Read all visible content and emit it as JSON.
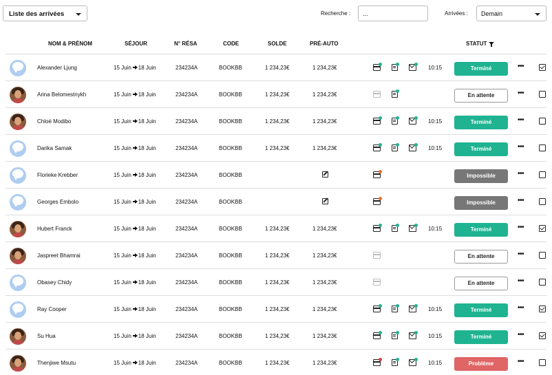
{
  "toolbar": {
    "list_select": "Liste des arrivées",
    "search_label": "Recherche :",
    "search_value": "...",
    "arrivals_label": "Arrivées :",
    "arrivals_select": "Demain"
  },
  "table": {
    "headers": {
      "name": "NOM & PRÉNOM",
      "stay": "SÉJOUR",
      "resa": "N° RÉSA",
      "code": "CODE",
      "solde": "SOLDE",
      "preauto": "PRÉ-AUTO",
      "status": "STATUT"
    },
    "rows": [
      {
        "name": "Alexander Ljung",
        "avatar": "default",
        "from": "15 Juin",
        "to": "18 Juin",
        "resa": "234234A",
        "code": "BOOKBB",
        "solde": "1 234,23€",
        "preauto": "1 234,23€",
        "card": "ok",
        "doc": true,
        "mail": true,
        "time": "10:15",
        "status": "Terminé",
        "status_kind": "done",
        "checked": true
      },
      {
        "name": "Arina Belomestnykh",
        "avatar": "photo",
        "from": "15 Juin",
        "to": "18 Juin",
        "resa": "234234A",
        "code": "BOOKBB",
        "solde": "1 234,23€",
        "preauto": "1 234,23€",
        "card": "muted",
        "doc": true,
        "mail": false,
        "time": "",
        "status": "En attente",
        "status_kind": "wait",
        "checked": false
      },
      {
        "name": "Chloé Modibo",
        "avatar": "photo",
        "from": "15 Juin",
        "to": "18 Juin",
        "resa": "234234A",
        "code": "BOOKBB",
        "solde": "1 234,23€",
        "preauto": "1 234,23€",
        "card": "ok",
        "doc": true,
        "mail": true,
        "time": "10:15",
        "status": "Terminé",
        "status_kind": "done",
        "checked": false
      },
      {
        "name": "Darika Samak",
        "avatar": "default",
        "from": "15 Juin",
        "to": "18 Juin",
        "resa": "234234A",
        "code": "BOOKBB",
        "solde": "1 234,23€",
        "preauto": "1 234,23€",
        "card": "ok",
        "doc": true,
        "mail": true,
        "time": "10:15",
        "status": "Terminé",
        "status_kind": "done",
        "checked": false
      },
      {
        "name": "Florieke Krebber",
        "avatar": "default",
        "from": "15 Juin",
        "to": "18 Juin",
        "resa": "234234A",
        "code": "BOOKBB",
        "solde": "",
        "preauto": "",
        "preauto_edit": true,
        "card": "orange",
        "doc": false,
        "mail": false,
        "time": "",
        "status": "Impossible",
        "status_kind": "impossible",
        "checked": false
      },
      {
        "name": "Georges Embolo",
        "avatar": "default",
        "from": "15 Juin",
        "to": "18 Juin",
        "resa": "234234A",
        "code": "BOOKBB",
        "solde": "",
        "preauto": "",
        "preauto_edit": true,
        "card": "orange",
        "doc": false,
        "mail": false,
        "time": "",
        "status": "Impossible",
        "status_kind": "impossible",
        "checked": false
      },
      {
        "name": "Hubert Franck",
        "avatar": "photo",
        "from": "15 Juin",
        "to": "18 Juin",
        "resa": "234234A",
        "code": "BOOKBB",
        "solde": "1 234,23€",
        "preauto": "1 234,23€",
        "card": "ok",
        "doc": true,
        "mail": true,
        "time": "10:15",
        "status": "Terminé",
        "status_kind": "done",
        "checked": true
      },
      {
        "name": "Jaspreet Bhamrai",
        "avatar": "photo",
        "from": "15 Juin",
        "to": "18 Juin",
        "resa": "234234A",
        "code": "BOOKBB",
        "solde": "1 234,23€",
        "preauto": "1 234,23€",
        "card": "muted",
        "doc": false,
        "mail": false,
        "time": "",
        "status": "En attente",
        "status_kind": "wait",
        "checked": false
      },
      {
        "name": "Obasey Chidy",
        "avatar": "default",
        "from": "15 Juin",
        "to": "18 Juin",
        "resa": "234234A",
        "code": "BOOKBB",
        "solde": "1 234,23€",
        "preauto": "1 234,23€",
        "card": "muted",
        "doc": false,
        "mail": false,
        "time": "",
        "status": "En attente",
        "status_kind": "wait",
        "checked": false
      },
      {
        "name": "Ray Cooper",
        "avatar": "default",
        "from": "15 Juin",
        "to": "18 Juin",
        "resa": "234234A",
        "code": "BOOKBB",
        "solde": "1 234,23€",
        "preauto": "1 234,23€",
        "card": "ok",
        "doc": true,
        "mail": true,
        "time": "10:15",
        "status": "Terminé",
        "status_kind": "done",
        "checked": true
      },
      {
        "name": "Su Hua",
        "avatar": "photo",
        "from": "15 Juin",
        "to": "18 Juin",
        "resa": "234234A",
        "code": "BOOKBB",
        "solde": "1 234,23€",
        "preauto": "1 234,23€",
        "card": "ok",
        "doc": true,
        "mail": true,
        "time": "10:15",
        "status": "Terminé",
        "status_kind": "done",
        "checked": true
      },
      {
        "name": "Thenjiwe Msutu",
        "avatar": "photo",
        "from": "15 Juin",
        "to": "18 Juin",
        "resa": "234234A",
        "code": "BOOKBB",
        "solde": "1 234,23€",
        "preauto": "1 234,23€",
        "card": "red",
        "doc": true,
        "mail": true,
        "time": "10:15",
        "status": "Problème",
        "status_kind": "problem",
        "checked": false
      }
    ]
  },
  "colors": {
    "done": "#1fb391",
    "impossible": "#777777",
    "problem": "#e06565"
  },
  "icons": {
    "list_caret": "chevron-down-icon",
    "arrivals_caret": "chevron-down-icon",
    "status_filter": "filter-icon"
  }
}
